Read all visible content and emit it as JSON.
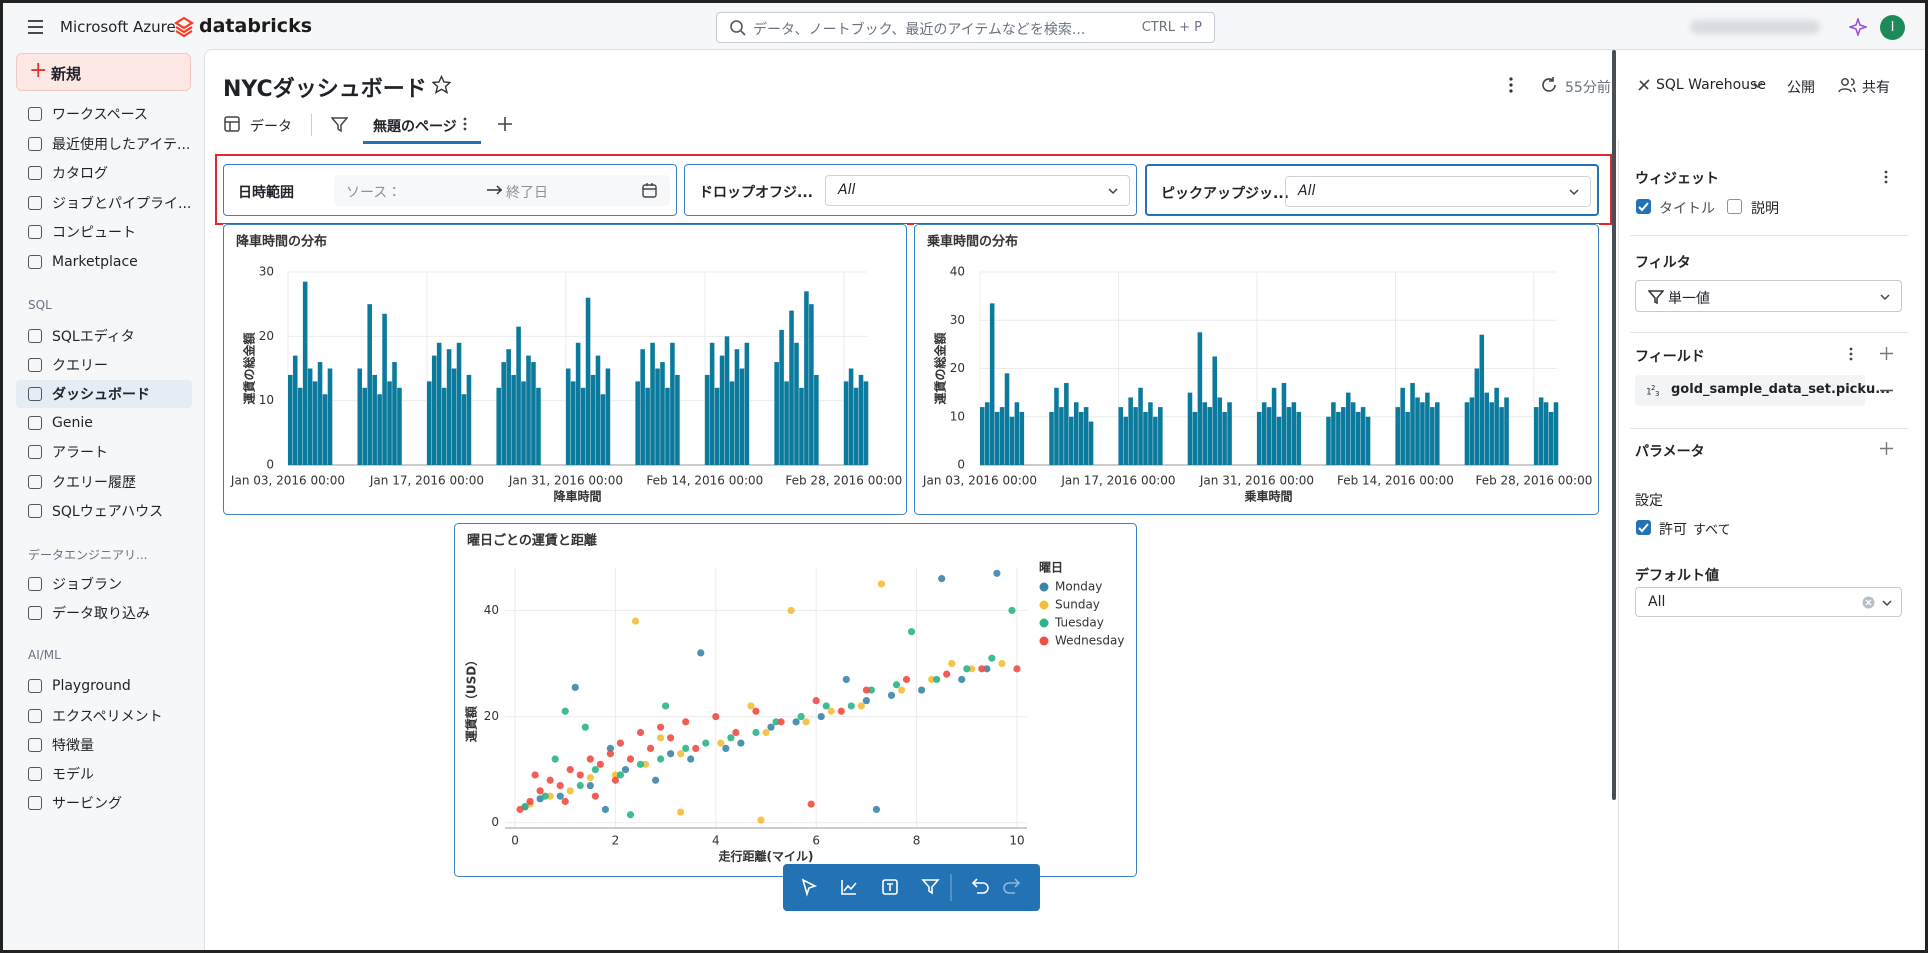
{
  "top_bar": {
    "brand": "Microsoft Azure",
    "product": "databricks",
    "search_placeholder": "データ、ノートブック、最近のアイテムなどを検索...",
    "search_shortcut": "CTRL + P",
    "avatar": "I"
  },
  "sidebar": {
    "new": "新規",
    "items": [
      "ワークスペース",
      "最近使用したアイテ...",
      "カタログ",
      "ジョブとパイプライ...",
      "コンピュート",
      "Marketplace"
    ],
    "sections": [
      {
        "title": "SQL",
        "items": [
          "SQLエディタ",
          "クエリー",
          "ダッシュボード",
          "Genie",
          "アラート",
          "クエリー履歴",
          "SQLウェアハウス"
        ]
      },
      {
        "title": "データエンジニアリ...",
        "items": [
          "ジョブラン",
          "データ取り込み"
        ]
      },
      {
        "title": "AI/ML",
        "items": [
          "Playground",
          "エクスペリメント",
          "特徴量",
          "モデル",
          "サービング"
        ]
      }
    ]
  },
  "header": {
    "title": "NYCダッシュボード",
    "refresh": "55分前",
    "warehouse": "SQL Warehouse",
    "publish": "公開",
    "share": "共有"
  },
  "tabs": {
    "data": "データ",
    "page": "無題のページ"
  },
  "filters": [
    {
      "label": "日時範囲",
      "start": "ソース：",
      "end": "終了日"
    },
    {
      "label": "ドロップオフジ...",
      "value": "All"
    },
    {
      "label": "ピックアップジッ...",
      "value": "All"
    }
  ],
  "panel": {
    "widget": "ウィジェット",
    "title_check": "タイトル",
    "desc_check": "説明",
    "filter": "フィルタ",
    "filter_value": "単一値",
    "fields": "フィールド",
    "field": "gold_sample_data_set.picku...",
    "params": "パラメータ",
    "settings": "設定",
    "allow": "許可",
    "all": "すべて",
    "default": "デフォルト値",
    "default_value": "All"
  },
  "chart_data": [
    {
      "type": "bar",
      "title": "降車時間の分布",
      "x_label": "降車時間",
      "y_label": "運賃の総金額",
      "color": "#0b7a9c",
      "grid": true,
      "xlim": [
        "2016-01-03 00:00",
        "2016-03-01 08:00"
      ],
      "xticks": [
        {
          "value": "2016-01-03 00:00",
          "label": "Jan 03, 2016 00:00"
        },
        {
          "value": "2016-01-17 00:00",
          "label": "Jan 17, 2016 00:00"
        },
        {
          "value": "2016-01-31 00:00",
          "label": "Jan 31, 2016 00:00"
        },
        {
          "value": "2016-02-14 00:00",
          "label": "Feb 14, 2016 00:00"
        },
        {
          "value": "2016-02-28 00:00",
          "label": "Feb 28, 2016 00:00"
        }
      ],
      "ylim": [
        0,
        30
      ],
      "yticks": [
        0,
        10,
        20,
        30
      ],
      "x": [
        "2016-01-03 00:00",
        "2016-01-03 12:00",
        "2016-01-04 00:00",
        "2016-01-04 12:00",
        "2016-01-05 00:00",
        "2016-01-05 12:00",
        "2016-01-06 00:00",
        "2016-01-06 12:00",
        "2016-01-07 00:00",
        "2016-01-10 00:00",
        "2016-01-10 12:00",
        "2016-01-11 00:00",
        "2016-01-11 12:00",
        "2016-01-12 00:00",
        "2016-01-12 12:00",
        "2016-01-13 00:00",
        "2016-01-13 12:00",
        "2016-01-14 00:00",
        "2016-01-17 00:00",
        "2016-01-17 12:00",
        "2016-01-18 00:00",
        "2016-01-18 12:00",
        "2016-01-19 00:00",
        "2016-01-19 12:00",
        "2016-01-20 00:00",
        "2016-01-20 12:00",
        "2016-01-21 00:00",
        "2016-01-24 00:00",
        "2016-01-24 12:00",
        "2016-01-25 00:00",
        "2016-01-25 12:00",
        "2016-01-26 00:00",
        "2016-01-26 12:00",
        "2016-01-27 00:00",
        "2016-01-27 12:00",
        "2016-01-28 00:00",
        "2016-01-31 00:00",
        "2016-01-31 12:00",
        "2016-02-01 00:00",
        "2016-02-01 12:00",
        "2016-02-02 00:00",
        "2016-02-02 12:00",
        "2016-02-03 00:00",
        "2016-02-03 12:00",
        "2016-02-04 00:00",
        "2016-02-07 00:00",
        "2016-02-07 12:00",
        "2016-02-08 00:00",
        "2016-02-08 12:00",
        "2016-02-09 00:00",
        "2016-02-09 12:00",
        "2016-02-10 00:00",
        "2016-02-10 12:00",
        "2016-02-11 00:00",
        "2016-02-14 00:00",
        "2016-02-14 12:00",
        "2016-02-15 00:00",
        "2016-02-15 12:00",
        "2016-02-16 00:00",
        "2016-02-16 12:00",
        "2016-02-17 00:00",
        "2016-02-17 12:00",
        "2016-02-18 00:00",
        "2016-02-21 00:00",
        "2016-02-21 12:00",
        "2016-02-22 00:00",
        "2016-02-22 12:00",
        "2016-02-23 00:00",
        "2016-02-23 12:00",
        "2016-02-24 00:00",
        "2016-02-24 12:00",
        "2016-02-25 00:00",
        "2016-02-28 00:00",
        "2016-02-28 12:00",
        "2016-02-29 00:00",
        "2016-02-29 12:00",
        "2016-03-01 00:00"
      ],
      "values": [
        14,
        17,
        12,
        28.5,
        15,
        13,
        16,
        11,
        15,
        15,
        12,
        25,
        14,
        11,
        23.5,
        13,
        16,
        12,
        13,
        17,
        19,
        12,
        18,
        15,
        19,
        11,
        14,
        12,
        16,
        18,
        14,
        21.5,
        13,
        17,
        16,
        12,
        15,
        13,
        19,
        12,
        26,
        14,
        17,
        11,
        15,
        13,
        18,
        12,
        19,
        15,
        16,
        12,
        19,
        14,
        14,
        19,
        12,
        17,
        20,
        13,
        18,
        15,
        19,
        16,
        21,
        13,
        24,
        19,
        12,
        27,
        25,
        14,
        13,
        15,
        12,
        14,
        13
      ]
    },
    {
      "type": "bar",
      "title": "乗車時間の分布",
      "x_label": "乗車時間",
      "y_label": "運賃の総金額",
      "color": "#0b7a9c",
      "grid": true,
      "xlim": [
        "2016-01-03 00:00",
        "2016-03-01 08:00"
      ],
      "xticks": [
        {
          "value": "2016-01-03 00:00",
          "label": "Jan 03, 2016 00:00"
        },
        {
          "value": "2016-01-17 00:00",
          "label": "Jan 17, 2016 00:00"
        },
        {
          "value": "2016-01-31 00:00",
          "label": "Jan 31, 2016 00:00"
        },
        {
          "value": "2016-02-14 00:00",
          "label": "Feb 14, 2016 00:00"
        },
        {
          "value": "2016-02-28 00:00",
          "label": "Feb 28, 2016 00:00"
        }
      ],
      "ylim": [
        0,
        40
      ],
      "yticks": [
        0,
        10,
        20,
        30,
        40
      ],
      "x": [
        "2016-01-03 00:00",
        "2016-01-03 12:00",
        "2016-01-04 00:00",
        "2016-01-04 12:00",
        "2016-01-05 00:00",
        "2016-01-05 12:00",
        "2016-01-06 00:00",
        "2016-01-06 12:00",
        "2016-01-07 00:00",
        "2016-01-10 00:00",
        "2016-01-10 12:00",
        "2016-01-11 00:00",
        "2016-01-11 12:00",
        "2016-01-12 00:00",
        "2016-01-12 12:00",
        "2016-01-13 00:00",
        "2016-01-13 12:00",
        "2016-01-14 00:00",
        "2016-01-17 00:00",
        "2016-01-17 12:00",
        "2016-01-18 00:00",
        "2016-01-18 12:00",
        "2016-01-19 00:00",
        "2016-01-19 12:00",
        "2016-01-20 00:00",
        "2016-01-20 12:00",
        "2016-01-21 00:00",
        "2016-01-24 00:00",
        "2016-01-24 12:00",
        "2016-01-25 00:00",
        "2016-01-25 12:00",
        "2016-01-26 00:00",
        "2016-01-26 12:00",
        "2016-01-27 00:00",
        "2016-01-27 12:00",
        "2016-01-28 00:00",
        "2016-01-31 00:00",
        "2016-01-31 12:00",
        "2016-02-01 00:00",
        "2016-02-01 12:00",
        "2016-02-02 00:00",
        "2016-02-02 12:00",
        "2016-02-03 00:00",
        "2016-02-03 12:00",
        "2016-02-04 00:00",
        "2016-02-07 00:00",
        "2016-02-07 12:00",
        "2016-02-08 00:00",
        "2016-02-08 12:00",
        "2016-02-09 00:00",
        "2016-02-09 12:00",
        "2016-02-10 00:00",
        "2016-02-10 12:00",
        "2016-02-11 00:00",
        "2016-02-14 00:00",
        "2016-02-14 12:00",
        "2016-02-15 00:00",
        "2016-02-15 12:00",
        "2016-02-16 00:00",
        "2016-02-16 12:00",
        "2016-02-17 00:00",
        "2016-02-17 12:00",
        "2016-02-18 00:00",
        "2016-02-21 00:00",
        "2016-02-21 12:00",
        "2016-02-22 00:00",
        "2016-02-22 12:00",
        "2016-02-23 00:00",
        "2016-02-23 12:00",
        "2016-02-24 00:00",
        "2016-02-24 12:00",
        "2016-02-25 00:00",
        "2016-02-28 00:00",
        "2016-02-28 12:00",
        "2016-02-29 00:00",
        "2016-02-29 12:00",
        "2016-03-01 00:00"
      ],
      "values": [
        12,
        13,
        33.5,
        11,
        12,
        19,
        10,
        13,
        11,
        11,
        16,
        12,
        17,
        10,
        13,
        11,
        12,
        9,
        12,
        10,
        14,
        12,
        16,
        11,
        13,
        10,
        12,
        15,
        11,
        27.5,
        13,
        12,
        22.5,
        14,
        11,
        13,
        11,
        13,
        12,
        16,
        10,
        17,
        12,
        13,
        11,
        10,
        13,
        11,
        12,
        15,
        13,
        11,
        12,
        10,
        12,
        16,
        11,
        17,
        14,
        13,
        15,
        12,
        13,
        13,
        14,
        20,
        27,
        15,
        13,
        16,
        12,
        14,
        12,
        14,
        13,
        11,
        13
      ]
    },
    {
      "type": "scatter",
      "title": "曜日ごとの運賃と距離",
      "x_label": "走行距離(マイル)",
      "y_label": "運賃額（USD）",
      "legend_title": "曜日",
      "legend": "right",
      "grid": true,
      "xlim": [
        -0.2,
        10.2
      ],
      "xticks": [
        0,
        2,
        4,
        6,
        8,
        10
      ],
      "ylim": [
        -1,
        48
      ],
      "yticks": [
        0,
        20,
        40
      ],
      "series": [
        {
          "name": "Monday",
          "color": "#3a86a8",
          "x": [
            0.2,
            0.5,
            0.9,
            1.2,
            1.5,
            1.9,
            2.2,
            2.8,
            3.1,
            3.5,
            3.7,
            4.2,
            4.5,
            5.1,
            5.6,
            6.1,
            6.6,
            7.0,
            7.2,
            7.5,
            8.1,
            8.5,
            8.9,
            9.4,
            9.6,
            1.8
          ],
          "values": [
            3,
            4.5,
            5,
            25.5,
            7,
            14,
            10,
            8,
            13,
            12,
            32,
            14,
            15,
            18,
            19,
            20,
            27,
            23,
            2.5,
            24,
            25,
            46,
            27,
            29,
            47,
            2.5
          ]
        },
        {
          "name": "Sunday",
          "color": "#f5bd3a",
          "x": [
            0.3,
            0.7,
            1.1,
            1.5,
            2.0,
            2.4,
            2.6,
            3.3,
            3.3,
            4.1,
            4.9,
            5.0,
            5.5,
            5.8,
            6.3,
            6.9,
            7.3,
            7.7,
            8.3,
            8.7,
            9.1,
            9.7,
            4.7,
            2.9
          ],
          "values": [
            3.5,
            5,
            6,
            8.5,
            9,
            38,
            11,
            13,
            2,
            15,
            0.5,
            17,
            40,
            19,
            21,
            22,
            45,
            25,
            27,
            30,
            29,
            30,
            22,
            16
          ]
        },
        {
          "name": "Tuesday",
          "color": "#2bb58a",
          "x": [
            0.2,
            0.6,
            0.8,
            1.0,
            1.3,
            1.6,
            2.1,
            2.3,
            2.5,
            2.9,
            3.4,
            3.8,
            4.3,
            4.8,
            5.2,
            5.7,
            6.2,
            6.7,
            7.1,
            7.6,
            7.9,
            8.4,
            9.0,
            9.5,
            9.9,
            3.0,
            1.4
          ],
          "values": [
            3,
            5,
            12,
            21,
            7,
            10,
            9,
            1.5,
            11,
            12,
            14,
            15,
            16,
            17,
            19,
            20,
            22,
            22,
            25,
            26,
            36,
            27,
            29,
            31,
            40,
            22,
            18
          ]
        },
        {
          "name": "Wednesday",
          "color": "#f14d41",
          "x": [
            0.1,
            0.3,
            0.5,
            0.7,
            0.9,
            1.1,
            1.3,
            1.5,
            1.7,
            1.9,
            2.1,
            2.3,
            2.5,
            2.7,
            2.9,
            3.1,
            3.4,
            3.6,
            4.0,
            4.4,
            4.8,
            5.3,
            5.9,
            6.0,
            6.5,
            7.0,
            7.8,
            8.6,
            9.3,
            10.0,
            1.0,
            2.0,
            0.4,
            1.6
          ],
          "values": [
            2.5,
            4,
            6,
            8,
            7,
            10,
            9,
            12,
            11,
            13,
            15,
            12,
            17,
            14,
            18,
            16,
            19,
            14,
            20,
            17,
            21,
            19,
            3.5,
            23,
            21,
            25,
            27,
            28,
            29,
            29,
            4,
            8,
            9,
            5
          ]
        }
      ]
    }
  ]
}
